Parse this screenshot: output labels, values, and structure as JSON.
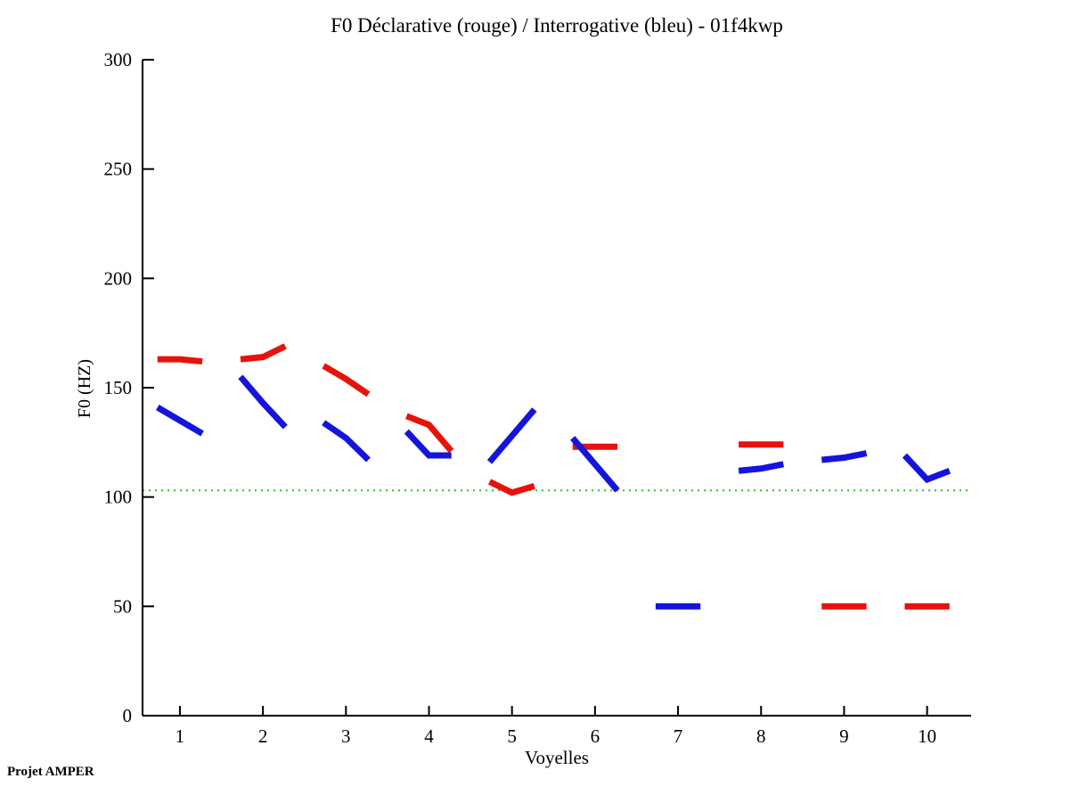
{
  "page": {
    "background": "#FFFFFF",
    "footer_text": "Projet AMPER"
  },
  "chart_data": {
    "type": "line",
    "title": "F0 Déclarative (rouge) / Interrogative (bleu) - 01f4kwp",
    "xlabel": "Voyelles",
    "ylabel": "F0 (HZ)",
    "xlim": [
      0.55,
      10.53
    ],
    "ylim": [
      0,
      300
    ],
    "xticks": [
      1,
      2,
      3,
      4,
      5,
      6,
      7,
      8,
      9,
      10
    ],
    "yticks": [
      0,
      50,
      100,
      150,
      200,
      250,
      300
    ],
    "grid": false,
    "legend_position": "none",
    "axis_color": "#000000",
    "point_offsets": [
      -0.27,
      0,
      0.27
    ],
    "reference_line": {
      "y": 103,
      "color": "#33BB33",
      "style": "dotted"
    },
    "series": [
      {
        "name": "Déclarative (rouge)",
        "color": "#E8120C",
        "values_by_vowel": [
          [
            163,
            163,
            162
          ],
          [
            163,
            164,
            169
          ],
          [
            160,
            154,
            147
          ],
          [
            137,
            133,
            121
          ],
          [
            107,
            102,
            105
          ],
          [
            123,
            123,
            123
          ],
          null,
          [
            124,
            124,
            124
          ],
          [
            50,
            50,
            50
          ],
          [
            50,
            50,
            50
          ]
        ]
      },
      {
        "name": "Interrogative (bleu)",
        "color": "#1414DD",
        "values_by_vowel": [
          [
            141,
            135,
            129
          ],
          [
            155,
            143,
            132
          ],
          [
            134,
            127,
            117
          ],
          [
            130,
            119,
            119
          ],
          [
            116,
            128,
            140
          ],
          [
            127,
            115,
            103
          ],
          [
            50,
            50,
            50
          ],
          [
            112,
            113,
            115
          ],
          [
            117,
            118,
            120
          ],
          [
            119,
            108,
            112
          ]
        ]
      }
    ]
  }
}
